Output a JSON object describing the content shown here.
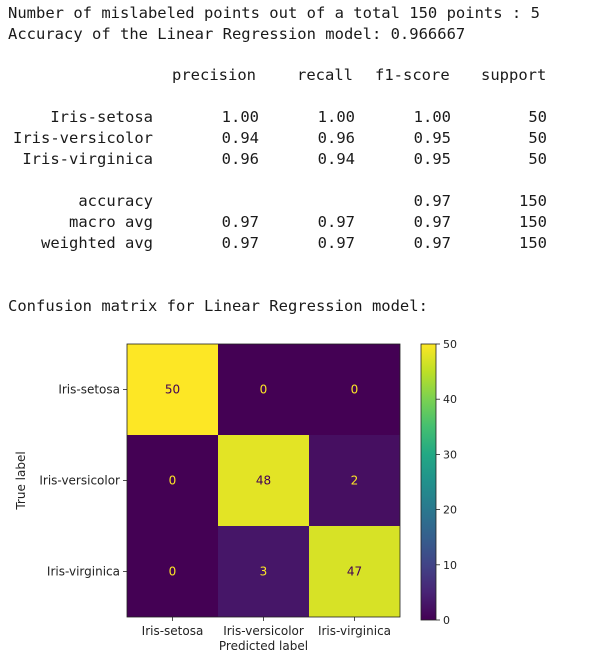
{
  "output": {
    "line1": "Number of mislabeled points out of a total 150 points : 5",
    "line2": "Accuracy of the Linear Regression model: 0.966667"
  },
  "report": {
    "headers": [
      "precision",
      "recall",
      "f1-score",
      "support"
    ],
    "rows": [
      {
        "label": "Iris-setosa",
        "precision": "1.00",
        "recall": "1.00",
        "f1": "1.00",
        "support": "50"
      },
      {
        "label": "Iris-versicolor",
        "precision": "0.94",
        "recall": "0.96",
        "f1": "0.95",
        "support": "50"
      },
      {
        "label": "Iris-virginica",
        "precision": "0.96",
        "recall": "0.94",
        "f1": "0.95",
        "support": "50"
      }
    ],
    "summary": [
      {
        "label": "accuracy",
        "precision": "",
        "recall": "",
        "f1": "0.97",
        "support": "150"
      },
      {
        "label": "macro avg",
        "precision": "0.97",
        "recall": "0.97",
        "f1": "0.97",
        "support": "150"
      },
      {
        "label": "weighted avg",
        "precision": "0.97",
        "recall": "0.97",
        "f1": "0.97",
        "support": "150"
      }
    ]
  },
  "matrix_title": "Confusion matrix for Linear Regression model:",
  "chart_data": {
    "type": "heatmap",
    "title": "",
    "xlabel": "Predicted label",
    "ylabel": "True label",
    "x_categories": [
      "Iris-setosa",
      "Iris-versicolor",
      "Iris-virginica"
    ],
    "y_categories": [
      "Iris-setosa",
      "Iris-versicolor",
      "Iris-virginica"
    ],
    "values": [
      [
        50,
        0,
        0
      ],
      [
        0,
        48,
        2
      ],
      [
        0,
        3,
        47
      ]
    ],
    "colormap": "viridis",
    "colorbar": {
      "min": 0,
      "max": 50,
      "ticks": [
        0,
        10,
        20,
        30,
        40,
        50
      ]
    },
    "colors": {
      "low": "#440154",
      "high": "#fde725",
      "text_dark": "#440154",
      "text_light": "#fde725"
    }
  }
}
